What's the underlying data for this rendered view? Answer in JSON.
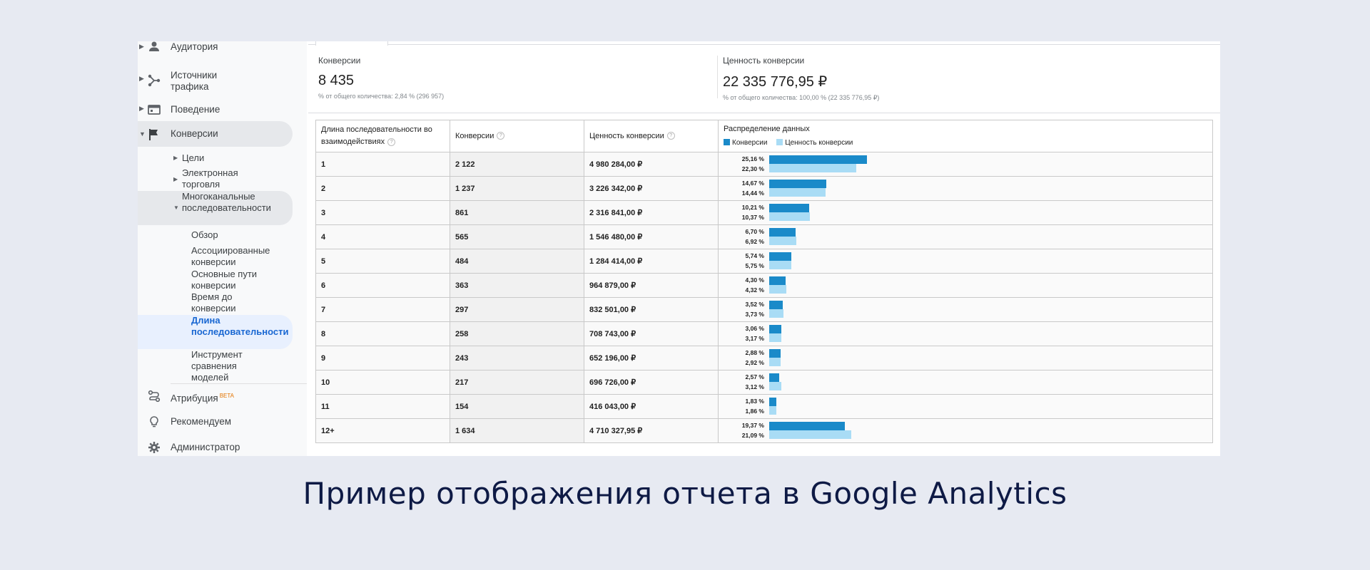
{
  "colors": {
    "conversions_bar": "#1a8ac9",
    "value_bar": "#a9dcf5",
    "active_nav": "#1967d2",
    "caption": "#0e1a45"
  },
  "sidebar": {
    "top_items": [
      {
        "label": "Аудитория",
        "icon": "person-icon"
      },
      {
        "label": "Источники трафика",
        "icon": "acquisition-icon"
      },
      {
        "label": "Поведение",
        "icon": "behavior-icon"
      },
      {
        "label": "Конверсии",
        "icon": "flag-icon"
      }
    ],
    "conversion_items": [
      {
        "label": "Цели"
      },
      {
        "label": "Электронная торговля"
      },
      {
        "label": "Многоканальные последовательности"
      }
    ],
    "mcf_items": [
      {
        "label": "Обзор"
      },
      {
        "label": "Ассоциированные конверсии"
      },
      {
        "label": "Основные пути конверсии"
      },
      {
        "label": "Время до конверсии"
      },
      {
        "label": "Длина последовательности"
      },
      {
        "label": "Инструмент сравнения моделей"
      }
    ],
    "bottom_items": [
      {
        "label": "Атрибуция",
        "badge": "BETA",
        "icon": "attribution-icon"
      },
      {
        "label": "Рекомендуем",
        "icon": "lightbulb-icon"
      },
      {
        "label": "Администратор",
        "icon": "gear-icon"
      }
    ]
  },
  "metrics": [
    {
      "title": "Конверсии",
      "value": "8 435",
      "sub": "% от общего количества: 2,84 % (296 957)"
    },
    {
      "title": "Ценность конверсии",
      "value": "22 335 776,95 ₽",
      "sub": "% от общего количества: 100,00 % (22 335 776,95 ₽)"
    }
  ],
  "table": {
    "headers": {
      "length": "Длина последовательности во взаимодействиях",
      "conversions": "Конверсии",
      "value": "Ценность конверсии",
      "distribution": "Распределение данных"
    },
    "legend": {
      "conversions": "Конверсии",
      "value": "Ценность конверсии"
    }
  },
  "chart_data": {
    "type": "bar",
    "categories": [
      "1",
      "2",
      "3",
      "4",
      "5",
      "6",
      "7",
      "8",
      "9",
      "10",
      "11",
      "12+"
    ],
    "conversions": [
      "2 122",
      "1 237",
      "861",
      "565",
      "484",
      "363",
      "297",
      "258",
      "243",
      "217",
      "154",
      "1 634"
    ],
    "conversion_values": [
      "4 980 284,00 ₽",
      "3 226 342,00 ₽",
      "2 316 841,00 ₽",
      "1 546 480,00 ₽",
      "1 284 414,00 ₽",
      "964 879,00 ₽",
      "832 501,00 ₽",
      "708 743,00 ₽",
      "652 196,00 ₽",
      "696 726,00 ₽",
      "416 043,00 ₽",
      "4 710 327,95 ₽"
    ],
    "series": [
      {
        "name": "Конверсии",
        "values": [
          25.16,
          14.67,
          10.21,
          6.7,
          5.74,
          4.3,
          3.52,
          3.06,
          2.88,
          2.57,
          1.83,
          19.37
        ],
        "labels": [
          "25,16 %",
          "14,67 %",
          "10,21 %",
          "6,70 %",
          "5,74 %",
          "4,30 %",
          "3,52 %",
          "3,06 %",
          "2,88 %",
          "2,57 %",
          "1,83 %",
          "19,37 %"
        ]
      },
      {
        "name": "Ценность конверсии",
        "values": [
          22.3,
          14.44,
          10.37,
          6.92,
          5.75,
          4.32,
          3.73,
          3.17,
          2.92,
          3.12,
          1.86,
          21.09
        ],
        "labels": [
          "22,30 %",
          "14,44 %",
          "10,37 %",
          "6,92 %",
          "5,75 %",
          "4,32 %",
          "3,73 %",
          "3,17 %",
          "2,92 %",
          "3,12 %",
          "1,86 %",
          "21,09 %"
        ]
      }
    ]
  },
  "caption": "Пример отображения отчета в Google Analytics"
}
